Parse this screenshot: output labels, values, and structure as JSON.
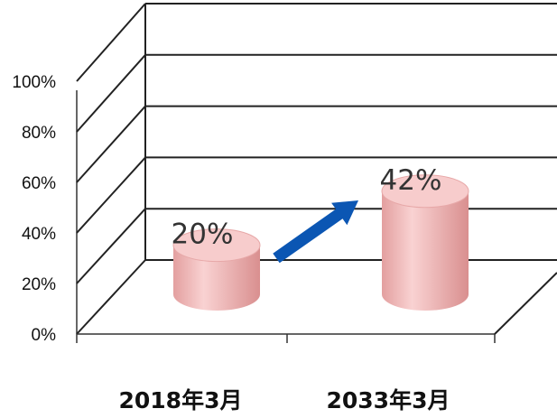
{
  "chart_data": {
    "type": "bar",
    "style": "3d-cylinder",
    "categories": [
      "2018年3月",
      "2033年3月"
    ],
    "values": [
      20,
      42
    ],
    "data_labels": [
      "20%",
      "42%"
    ],
    "y_ticks": [
      "0%",
      "20%",
      "40%",
      "60%",
      "80%",
      "100%"
    ],
    "ylim": [
      0,
      100
    ],
    "grid": true,
    "legend": "none",
    "annotations": [
      "arrow from first bar to second bar"
    ],
    "colors": {
      "bar_fill": "#f0b4b4",
      "bar_top": "#f7cccc",
      "arrow": "#0b56b3",
      "grid": "#222222"
    }
  }
}
